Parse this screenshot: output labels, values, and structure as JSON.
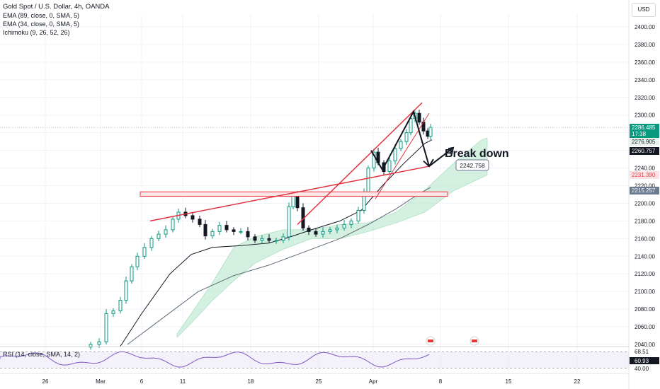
{
  "legend": {
    "title": "Gold Spot / U.S. Dollar, 4h, OANDA",
    "lines": [
      "EMA (89, close, 0, SMA, 5)",
      "EMA (34, close, 0, SMA, 5)",
      "Ichimoku (9, 26, 52, 26)"
    ]
  },
  "currency": "USD",
  "rsi_label": "RSI (14, close, SMA, 14, 2)",
  "annotation_text": "Break down",
  "target_label": "2242.758",
  "chart_data": {
    "type": "candlestick",
    "title": "Gold Spot / U.S. Dollar, 4h, OANDA",
    "y_ticks": [
      2040,
      2060,
      2080,
      2100,
      2120,
      2140,
      2160,
      2180,
      2200,
      2220,
      2240,
      2260,
      2280,
      2300,
      2320,
      2340,
      2360,
      2380,
      2400
    ],
    "ylim": [
      2036,
      2410
    ],
    "x_labels": [
      "26",
      "Mar",
      "6",
      "11",
      "18",
      "25",
      "Apr",
      "8",
      "15",
      "22"
    ],
    "price_tags": [
      {
        "value": "2286.485",
        "color": "#089981",
        "text_color": "#ffffff"
      },
      {
        "value": "17:38",
        "color": "#089981",
        "text_color": "#ffffff"
      },
      {
        "value": "2276.905",
        "color": "#e8f3ee",
        "text_color": "#131722"
      },
      {
        "value": "2260.757",
        "color": "#131722",
        "text_color": "#ffffff"
      },
      {
        "value": "2231.390",
        "color": "#fbe3e5",
        "text_color": "#f23645"
      },
      {
        "value": "2215.257",
        "color": "#6b7a8f",
        "text_color": "#ffffff"
      }
    ],
    "rsi": {
      "levels": [
        "68.51",
        "60.93",
        "40.00"
      ],
      "upper_band": 70,
      "lower_band": 30
    },
    "colors": {
      "up": "#089981",
      "down": "#131722",
      "ema89": "#5d6a7a",
      "ema34": "#131722",
      "cloud": "#b8e6cc",
      "trend": "#e0333f",
      "zone": "#f23645"
    }
  }
}
